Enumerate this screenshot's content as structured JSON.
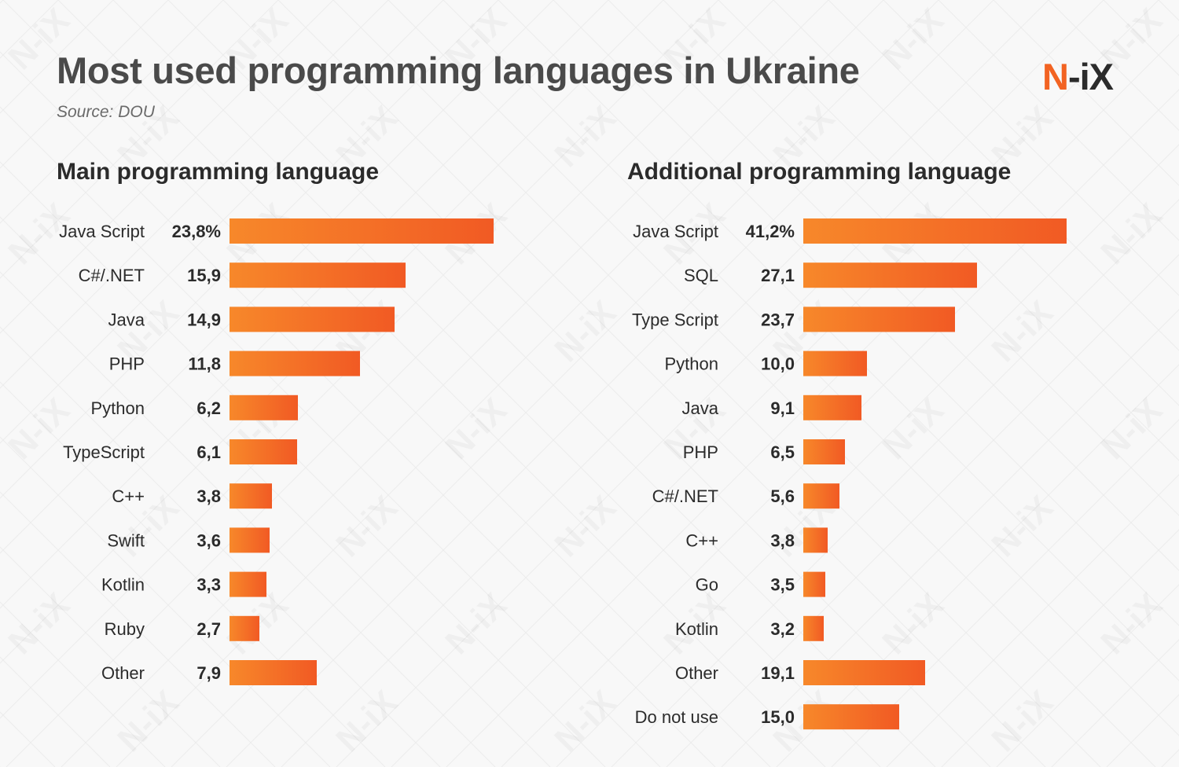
{
  "header": {
    "title": "Most used programming languages in Ukraine",
    "source": "Source: DOU"
  },
  "logo": {
    "mark": "N",
    "rest": "-iX",
    "watermark": "N-iX"
  },
  "colors": {
    "bar_start": "#f7882a",
    "bar_end": "#f15a24",
    "brand": "#f26322",
    "label": "#2b2b2b"
  },
  "chart_data": [
    {
      "type": "bar",
      "orientation": "horizontal",
      "title": "Main programming language",
      "categories": [
        "Java Script",
        "C#/.NET",
        "Java",
        "PHP",
        "Python",
        "TypeScript",
        "C++",
        "Swift",
        "Kotlin",
        "Ruby",
        "Other"
      ],
      "values": [
        23.8,
        15.9,
        14.9,
        11.8,
        6.2,
        6.1,
        3.8,
        3.6,
        3.3,
        2.7,
        7.9
      ],
      "value_labels": [
        "23,8%",
        "15,9",
        "14,9",
        "11,8",
        "6,2",
        "6,1",
        "3,8",
        "3,6",
        "3,3",
        "2,7",
        "7,9"
      ],
      "unit": "%"
    },
    {
      "type": "bar",
      "orientation": "horizontal",
      "title": "Additional programming language",
      "categories": [
        "Java Script",
        "SQL",
        "Type Script",
        "Python",
        "Java",
        "PHP",
        "C#/.NET",
        "C++",
        "Go",
        "Kotlin",
        "Other",
        "Do not use"
      ],
      "values": [
        41.2,
        27.1,
        23.7,
        10.0,
        9.1,
        6.5,
        5.6,
        3.8,
        3.5,
        3.2,
        19.1,
        15.0
      ],
      "value_labels": [
        "41,2%",
        "27,1",
        "23,7",
        "10,0",
        "9,1",
        "6,5",
        "5,6",
        "3,8",
        "3,5",
        "3,2",
        "19,1",
        "15,0"
      ],
      "unit": "%"
    }
  ]
}
